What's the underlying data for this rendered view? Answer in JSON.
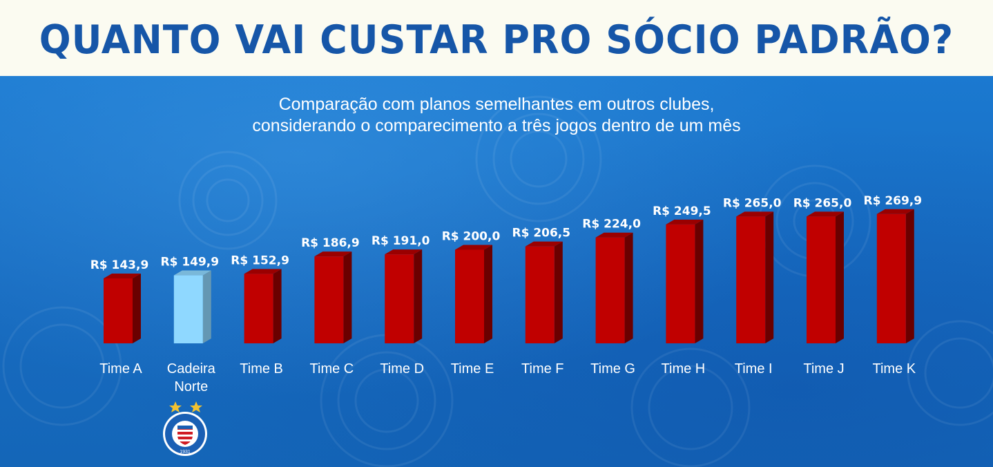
{
  "title": "QUANTO VAI CUSTAR PRO SÓCIO PADRÃO?",
  "subtitle_line1": "Comparação com planos semelhantes em outros clubes,",
  "subtitle_line2": "considerando o comparecimento a três jogos dentro de um mês",
  "crest": {
    "name": "ESPORTE CLUBE BAHIA",
    "year": "1931"
  },
  "colors": {
    "header_bg": "#fbfbf1",
    "title": "#1656a8",
    "background": "#1a6fc4",
    "bar": "#c00000",
    "bar_highlight": "#8fd8ff",
    "label": "#ffffff"
  },
  "chart_data": {
    "type": "bar",
    "categories": [
      "Time A",
      "Cadeira Norte",
      "Time B",
      "Time C",
      "Time D",
      "Time E",
      "Time F",
      "Time G",
      "Time H",
      "Time I",
      "Time J",
      "Time K"
    ],
    "values": [
      143.9,
      149.9,
      152.9,
      186.9,
      191.0,
      200.0,
      206.5,
      224.0,
      249.5,
      265.0,
      265.0,
      269.9
    ],
    "value_labels": [
      "R$ 143,9",
      "R$ 149,9",
      "R$ 152,9",
      "R$ 186,9",
      "R$ 191,0",
      "R$ 200,0",
      "R$ 206,5",
      "R$ 224,0",
      "R$ 249,5",
      "R$ 265,0",
      "R$ 265,0",
      "R$ 269,9"
    ],
    "highlight_category": "Cadeira Norte",
    "title": "",
    "xlabel": "",
    "ylabel": "",
    "grid": false
  }
}
